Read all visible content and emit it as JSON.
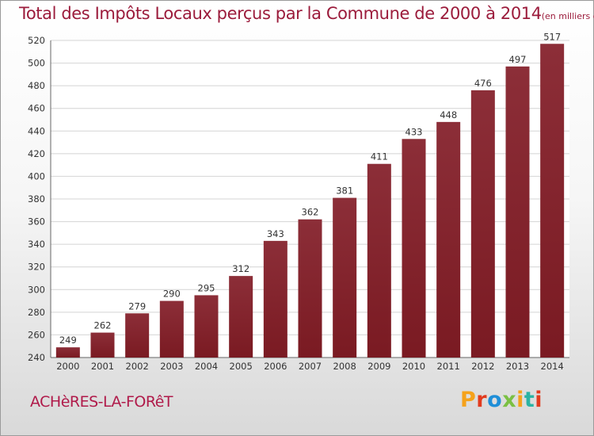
{
  "chart_data": {
    "type": "bar",
    "title": "Total des Impôts Locaux perçus par la Commune de 2000 à 2014",
    "subtitle": "(en milliers d'€)",
    "categories": [
      "2000",
      "2001",
      "2002",
      "2003",
      "2004",
      "2005",
      "2006",
      "2007",
      "2008",
      "2009",
      "2010",
      "2011",
      "2012",
      "2013",
      "2014"
    ],
    "values": [
      249,
      262,
      279,
      290,
      295,
      312,
      343,
      362,
      381,
      411,
      433,
      448,
      476,
      497,
      517
    ],
    "ylim": [
      240,
      520
    ],
    "yticks": [
      240,
      260,
      280,
      300,
      320,
      340,
      360,
      380,
      400,
      420,
      440,
      460,
      480,
      500,
      520
    ],
    "grid": "horizontal",
    "bar_color": "#7a1a22",
    "xlabel": "",
    "ylabel": ""
  },
  "footer": {
    "commune": "ACHèRES-LA-FORêT",
    "brand": "Proxiti",
    "brand_colors": [
      "#f5a21b",
      "#e23b1e",
      "#1f8fd8",
      "#7bc043",
      "#f5a21b",
      "#2bb3a3",
      "#e23b1e"
    ]
  },
  "colors": {
    "title": "#9b1b3b",
    "commune": "#b01a4a"
  }
}
